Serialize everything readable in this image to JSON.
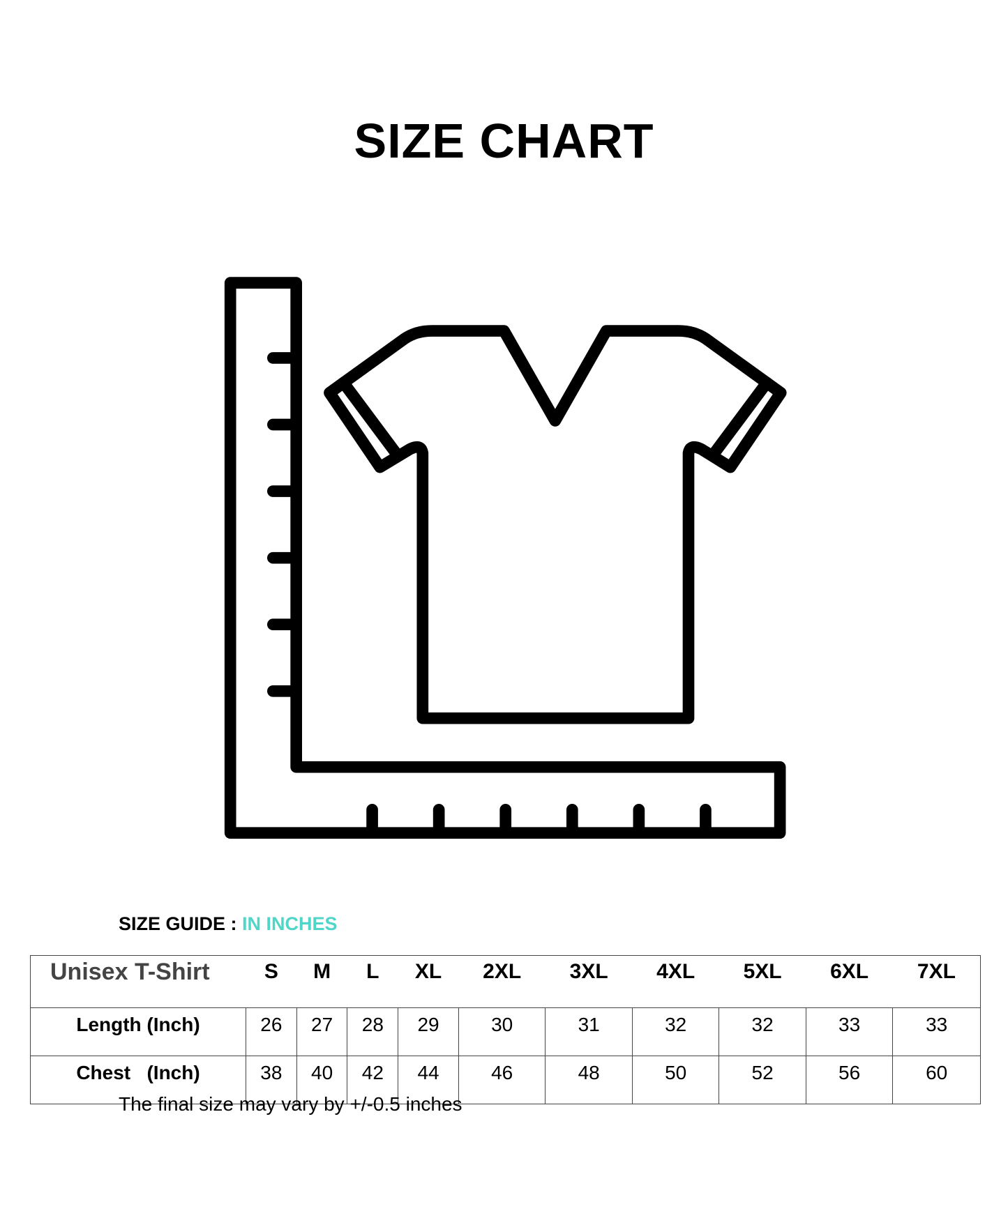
{
  "title": "SIZE CHART",
  "illustration_icon": "tshirt-with-ruler-icon",
  "guide": {
    "label": "SIZE GUIDE : ",
    "unit": "IN INCHES",
    "accent_color": "#4fd6c8"
  },
  "table": {
    "header": "Unisex T-Shirt",
    "sizes": [
      "S",
      "M",
      "L",
      "XL",
      "2XL",
      "3XL",
      "4XL",
      "5XL",
      "6XL",
      "7XL"
    ],
    "rows": [
      {
        "label": "Length (Inch)",
        "values": [
          "26",
          "27",
          "28",
          "29",
          "30",
          "31",
          "32",
          "32",
          "33",
          "33"
        ]
      },
      {
        "label": "Chest   (Inch)",
        "values": [
          "38",
          "40",
          "42",
          "44",
          "46",
          "48",
          "50",
          "52",
          "56",
          "60"
        ]
      }
    ]
  },
  "note": "The final size may vary by +/-0.5 inches"
}
